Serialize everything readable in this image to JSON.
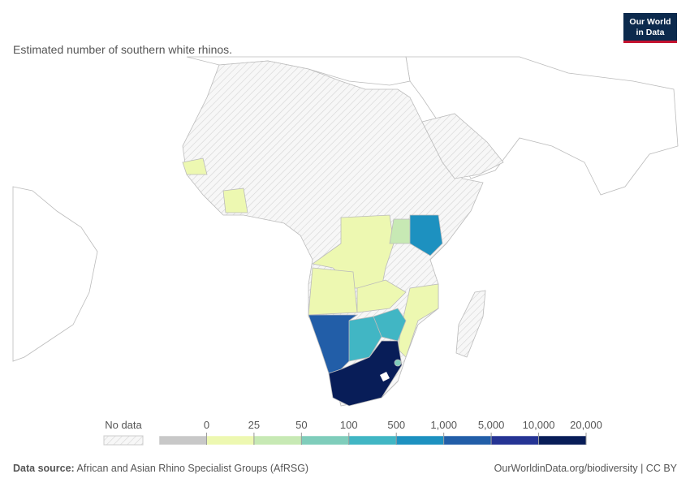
{
  "header": {
    "subtitle": "Estimated number of southern white rhinos.",
    "logo": [
      "Our World",
      "in Data"
    ]
  },
  "legend": {
    "no_data_label": "No data",
    "ticks": [
      "0",
      "25",
      "50",
      "100",
      "500",
      "1,000",
      "5,000",
      "10,000",
      "20,000"
    ],
    "colors": [
      "#c8c8c8",
      "#edf8b1",
      "#c7e9b4",
      "#7fcdbb",
      "#41b6c4",
      "#1d91c0",
      "#225ea8",
      "#253494",
      "#081d58"
    ]
  },
  "footer": {
    "source_label": "Data source:",
    "source": "African and Asian Rhino Specialist Groups (AfRSG)",
    "url": "OurWorldinData.org/biodiversity | CC BY"
  }
}
